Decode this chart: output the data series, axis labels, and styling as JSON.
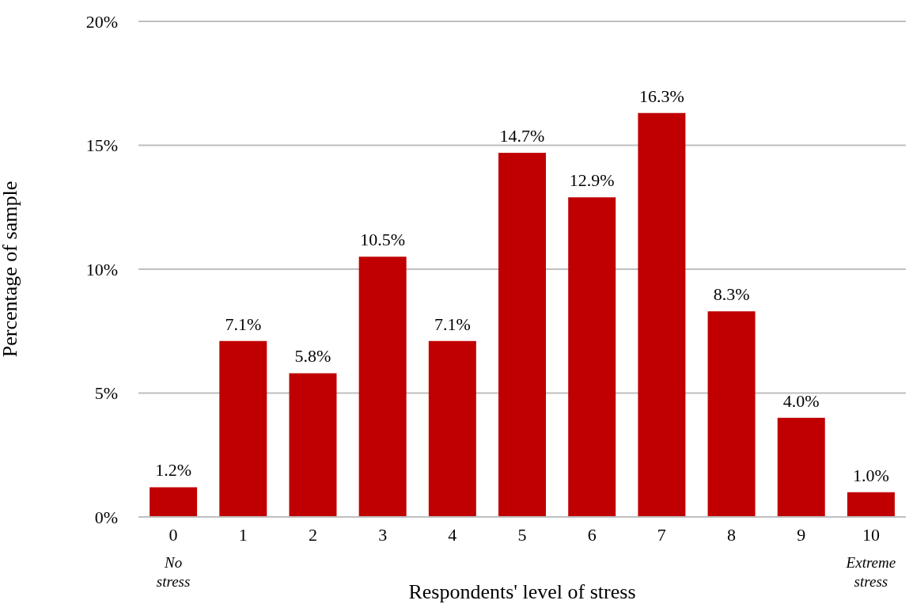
{
  "chart_data": {
    "type": "bar",
    "xlabel": "Respondents' level of stress",
    "ylabel": "Percentage of sample",
    "categories": [
      "0",
      "1",
      "2",
      "3",
      "4",
      "5",
      "6",
      "7",
      "8",
      "9",
      "10"
    ],
    "values": [
      1.2,
      7.1,
      5.8,
      10.5,
      7.1,
      14.7,
      12.9,
      16.3,
      8.3,
      4.0,
      1.0
    ],
    "value_labels": [
      "1.2%",
      "7.1%",
      "5.8%",
      "10.5%",
      "7.1%",
      "14.7%",
      "12.9%",
      "16.3%",
      "8.3%",
      "4.0%",
      "1.0%"
    ],
    "color": "#c00000",
    "ylim": [
      0,
      20
    ],
    "yticks": [
      {
        "value": 0,
        "label": "0%"
      },
      {
        "value": 5,
        "label": "5%"
      },
      {
        "value": 10,
        "label": "10%"
      },
      {
        "value": 15,
        "label": "15%"
      },
      {
        "value": 20,
        "label": "20%"
      }
    ],
    "grid": "y",
    "annotations": [
      "No stress",
      "Extreme stress"
    ]
  }
}
